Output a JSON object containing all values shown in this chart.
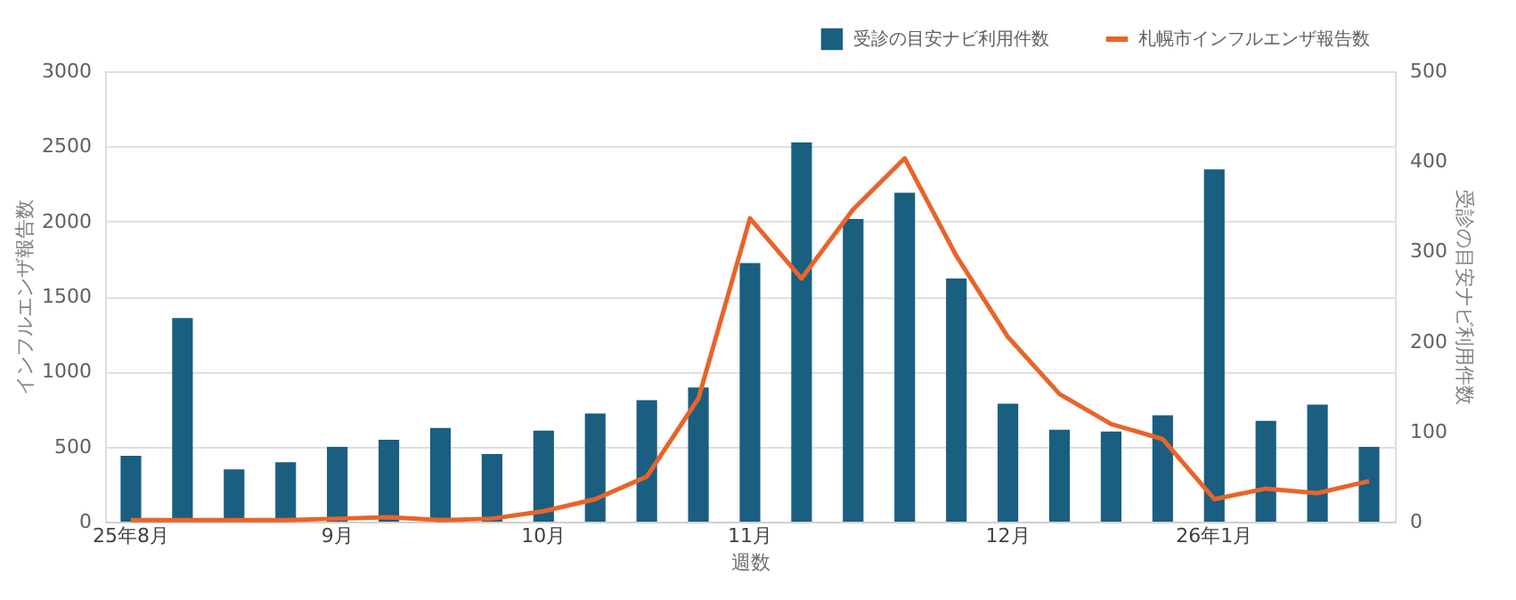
{
  "chart_data": {
    "type": "bar",
    "categories": [
      "25年8月",
      null,
      null,
      null,
      "9月",
      null,
      null,
      null,
      "10月",
      null,
      null,
      null,
      "11月",
      null,
      null,
      null,
      null,
      "12月",
      null,
      null,
      null,
      "26年1月",
      null,
      null,
      null
    ],
    "series": [
      {
        "name": "受診の目安ナビ利用件数",
        "axis": "y2",
        "color": "#1a5e80",
        "values": [
          73,
          226,
          58,
          66,
          83,
          91,
          104,
          75,
          101,
          120,
          135,
          149,
          287,
          421,
          336,
          365,
          270,
          131,
          102,
          100,
          118,
          391,
          112,
          130,
          83
        ]
      },
      {
        "name": "札幌市インフルエンザ報告数",
        "type": "line",
        "color": "#e8642a",
        "values": [
          10,
          10,
          10,
          10,
          20,
          30,
          10,
          20,
          70,
          150,
          300,
          820,
          2020,
          1620,
          2080,
          2420,
          1770,
          1230,
          850,
          650,
          550,
          150,
          220,
          190,
          270
        ]
      }
    ],
    "xlabel": "週数",
    "ylabel": "インフルエンザ報告数",
    "y2label": "受診の目安ナビ利用件数",
    "ylim": [
      0,
      3000
    ],
    "yticks": [
      0,
      500,
      1000,
      1500,
      2000,
      2500,
      3000
    ],
    "y2lim": [
      0,
      500
    ],
    "y2ticks": [
      0,
      100,
      200,
      300,
      400,
      500
    ],
    "grid": "y",
    "legend": "top right"
  }
}
